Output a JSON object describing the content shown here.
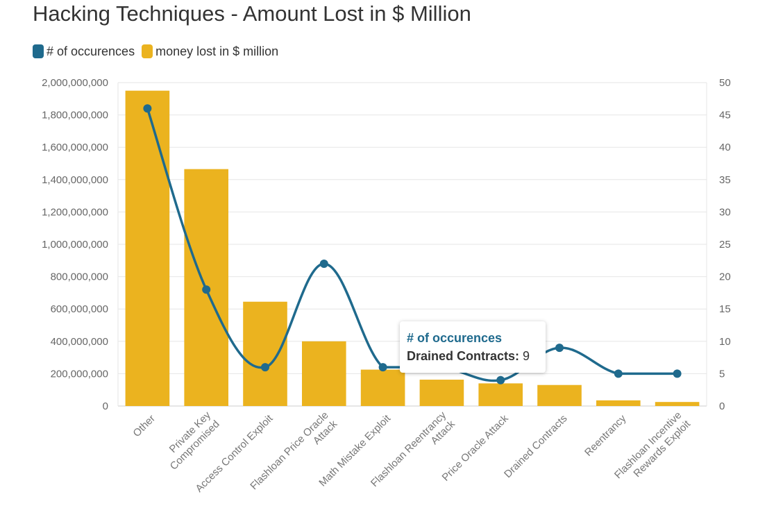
{
  "chart_data": {
    "type": "bar",
    "title": "Hacking Techniques - Amount Lost in $ Million",
    "categories": [
      [
        "Other"
      ],
      [
        "Private Key",
        "Compromised"
      ],
      [
        "Access Control Exploit"
      ],
      [
        "Flashloan Price Oracle",
        "Attack"
      ],
      [
        "Math Mistake Exploit"
      ],
      [
        "Flashloan Reentrancy",
        "Attack"
      ],
      [
        "Price Oracle Attack"
      ],
      [
        "Drained Contracts"
      ],
      [
        "Reentrancy"
      ],
      [
        "Flashloan Incentive",
        "Rewards Exploit"
      ]
    ],
    "series": [
      {
        "name": "money lost in $ million",
        "type": "bar",
        "axis": "left",
        "color": "#ebb31f",
        "values": [
          1950000000,
          1465000000,
          645000000,
          400000000,
          225000000,
          163000000,
          140000000,
          130000000,
          35000000,
          25000000
        ]
      },
      {
        "name": "# of occurences",
        "type": "line",
        "axis": "right",
        "color": "#1f6a8d",
        "values": [
          46,
          18,
          6,
          22,
          6,
          6,
          4,
          9,
          5,
          5
        ]
      }
    ],
    "y_left": {
      "min": 0,
      "max": 2000000000,
      "ticks": [
        "0",
        "200,000,000",
        "400,000,000",
        "600,000,000",
        "800,000,000",
        "1,000,000,000",
        "1,200,000,000",
        "1,400,000,000",
        "1,600,000,000",
        "1,800,000,000",
        "2,000,000,000"
      ]
    },
    "y_right": {
      "min": 0,
      "max": 50,
      "ticks": [
        "0",
        "5",
        "10",
        "15",
        "20",
        "25",
        "30",
        "35",
        "40",
        "45",
        "50"
      ]
    },
    "grid": true,
    "legend_position": "top-left"
  },
  "tooltip": {
    "title": "# of occurences",
    "label": "Drained Contracts:",
    "value": "9"
  }
}
